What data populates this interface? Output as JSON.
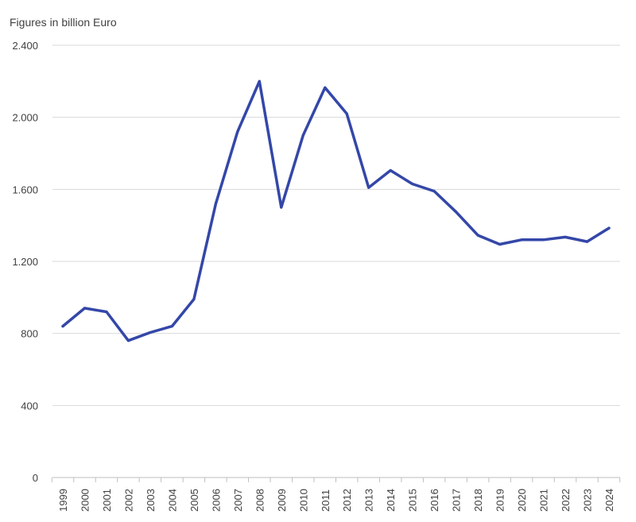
{
  "chart_data": {
    "type": "line",
    "title": "Figures in billion Euro",
    "xlabel": "",
    "ylabel": "",
    "ylim": [
      0,
      2400
    ],
    "yticks": [
      0,
      400,
      800,
      1200,
      1600,
      2000,
      2400
    ],
    "ytick_labels": [
      "0",
      "400",
      "800",
      "1.200",
      "1.600",
      "2.000",
      "2.400"
    ],
    "grid": "horizontal",
    "legend": "none",
    "categories": [
      "1999",
      "2000",
      "2001",
      "2002",
      "2003",
      "2004",
      "2005",
      "2006",
      "2007",
      "2008",
      "2009",
      "2010",
      "2011",
      "2012",
      "2013",
      "2014",
      "2015",
      "2016",
      "2017",
      "2018",
      "2019",
      "2020",
      "2021",
      "2022",
      "2023",
      "2024"
    ],
    "series": [
      {
        "color": "#3447a8",
        "values": [
          840,
          940,
          920,
          760,
          805,
          840,
          990,
          1520,
          1920,
          2200,
          1500,
          1900,
          2165,
          2020,
          1610,
          1705,
          1630,
          1590,
          1475,
          1345,
          1295,
          1320,
          1320,
          1335,
          1310,
          1385
        ]
      }
    ]
  }
}
